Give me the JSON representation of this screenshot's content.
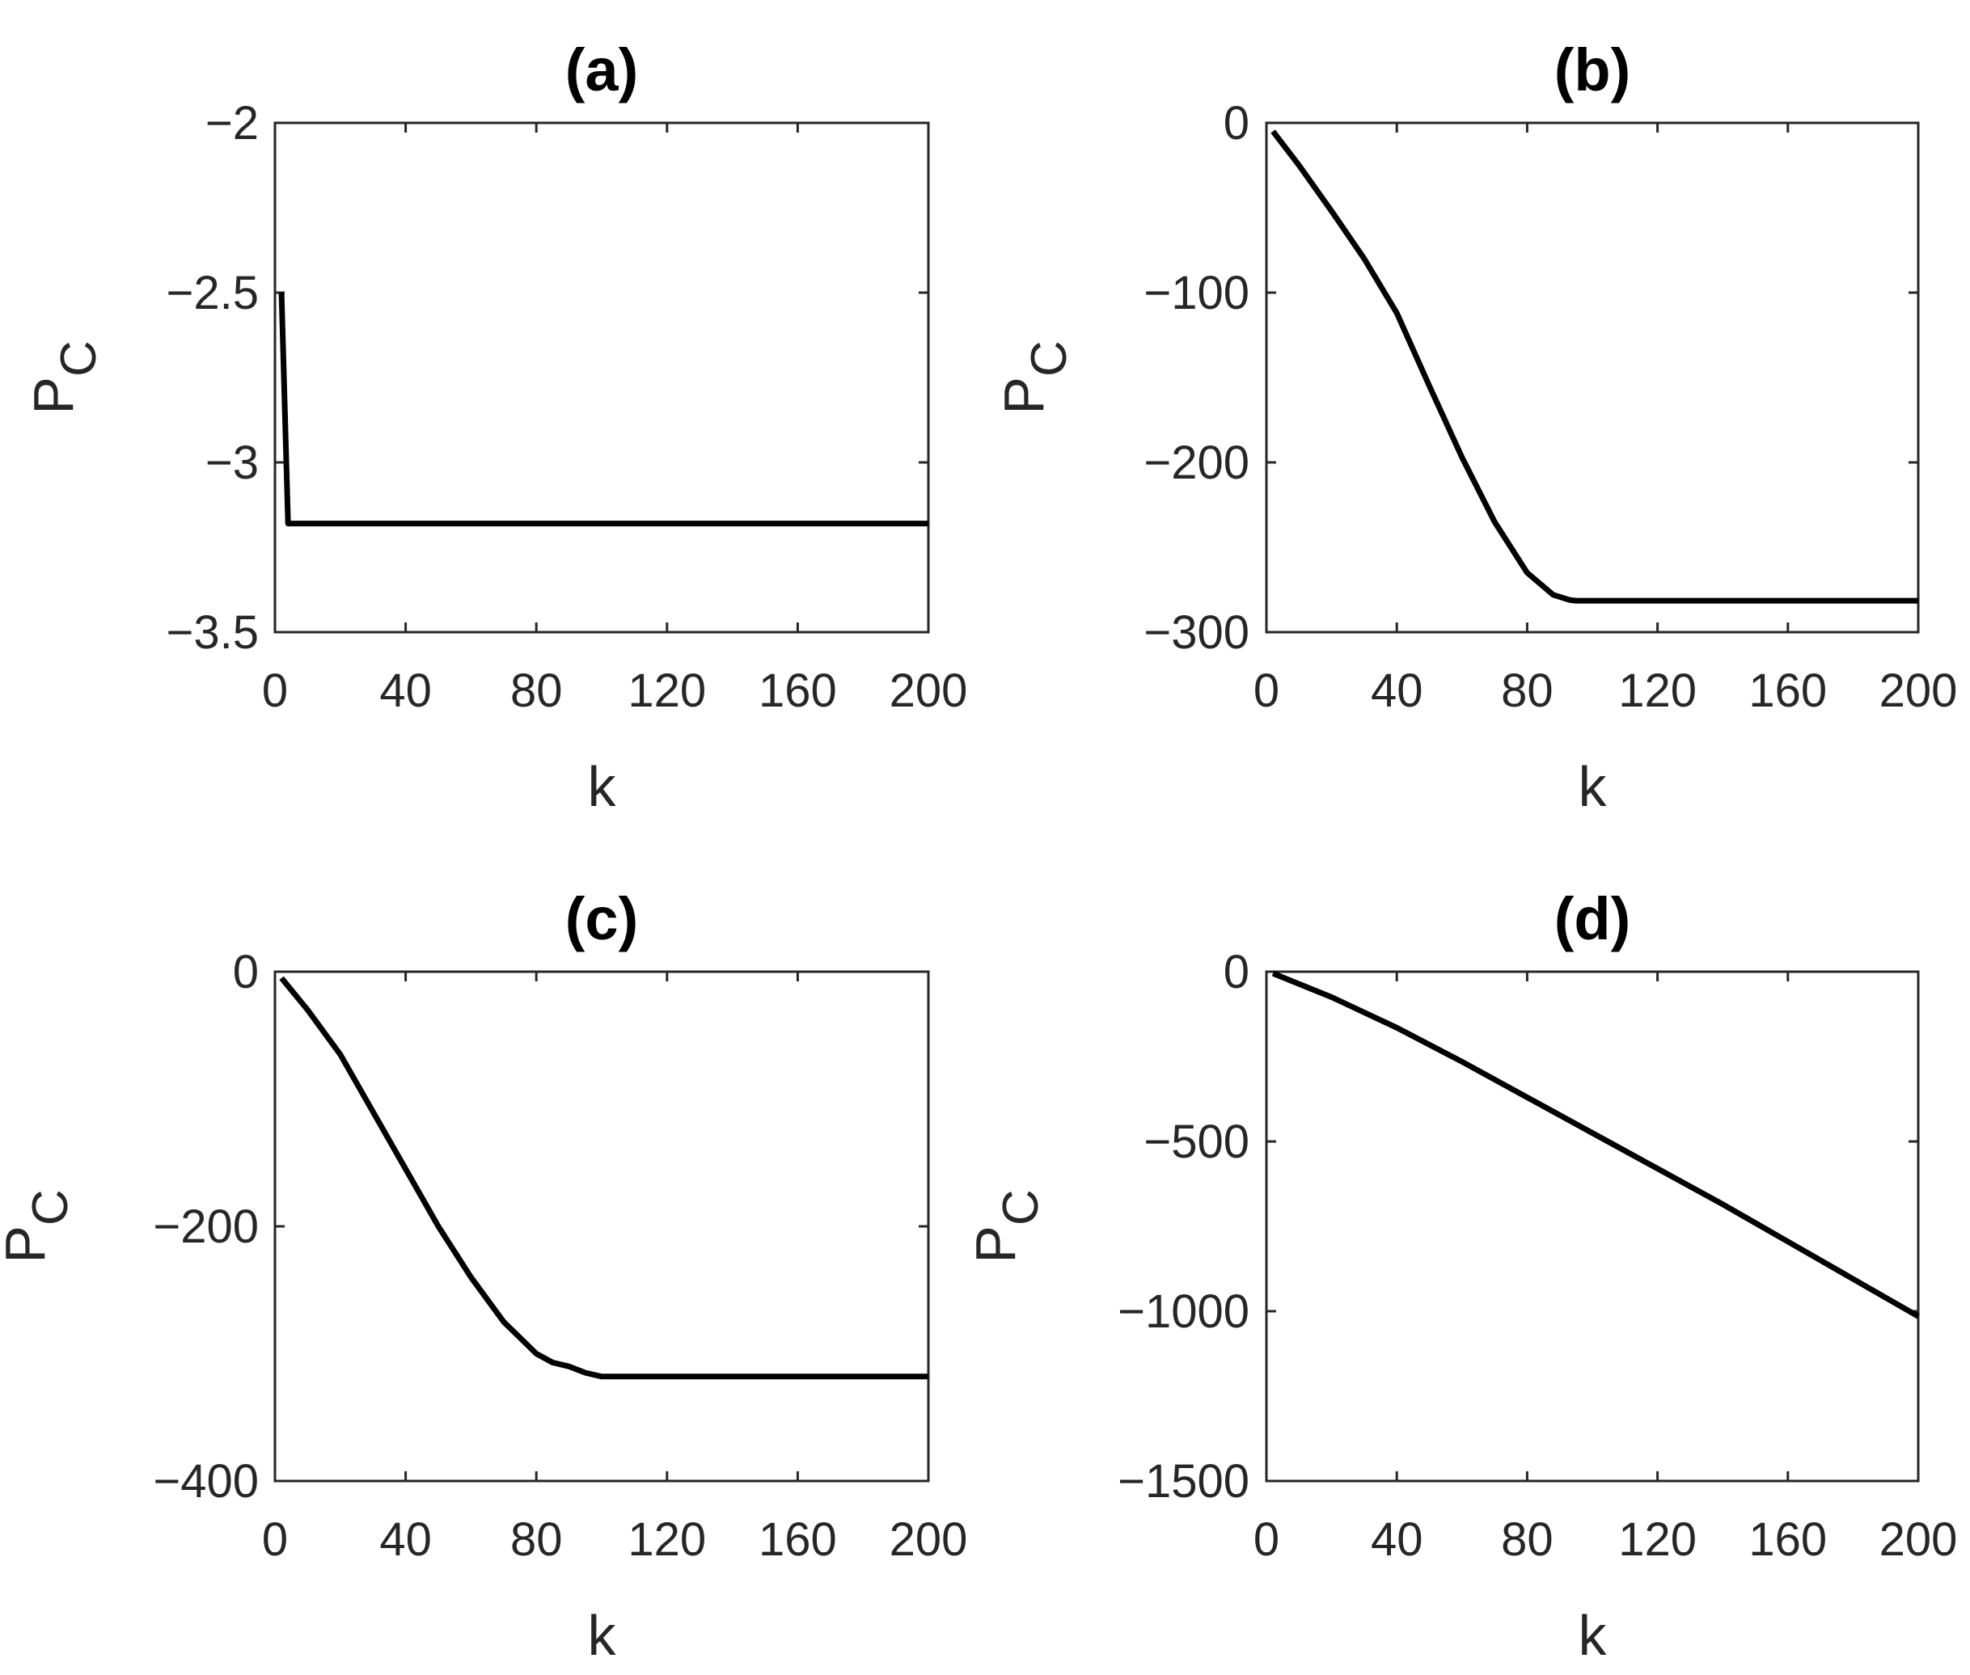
{
  "colors": {
    "line": "#000000",
    "axes": "#262626",
    "background": "#ffffff"
  },
  "chart_data": [
    {
      "type": "line",
      "title": "(a)",
      "xlabel": "k",
      "ylabel": "P",
      "ylabel_sub": "C",
      "xlim": [
        0,
        200
      ],
      "ylim": [
        -3.5,
        -2
      ],
      "xticks": [
        0,
        40,
        80,
        120,
        160,
        200
      ],
      "yticks": [
        -3.5,
        -3,
        -2.5,
        -2
      ],
      "ytick_labels": [
        "−3.5",
        "−3",
        "−2.5",
        "−2"
      ],
      "xtick_labels": [
        "0",
        "40",
        "80",
        "120",
        "160",
        "200"
      ],
      "grid": false,
      "series": [
        {
          "x": [
            2,
            4,
            200
          ],
          "y": [
            -2.5,
            -3.18,
            -3.18
          ]
        }
      ]
    },
    {
      "type": "line",
      "title": "(b)",
      "xlabel": "k",
      "ylabel": "P",
      "ylabel_sub": "C",
      "xlim": [
        0,
        200
      ],
      "ylim": [
        -300,
        0
      ],
      "xticks": [
        0,
        40,
        80,
        120,
        160,
        200
      ],
      "yticks": [
        -300,
        -200,
        -100,
        0
      ],
      "ytick_labels": [
        "−300",
        "−200",
        "−100",
        "0"
      ],
      "xtick_labels": [
        "0",
        "40",
        "80",
        "120",
        "160",
        "200"
      ],
      "grid": false,
      "series": [
        {
          "x": [
            2,
            10,
            20,
            30,
            40,
            50,
            60,
            70,
            80,
            88,
            93,
            95,
            100,
            150,
            200
          ],
          "y": [
            -5,
            -25,
            -52,
            -80,
            -112,
            -155,
            -197,
            -235,
            -265,
            -278,
            -281,
            -281.5,
            -281.5,
            -281.5,
            -281.5
          ]
        }
      ]
    },
    {
      "type": "line",
      "title": "(c)",
      "xlabel": "k",
      "ylabel": "P",
      "ylabel_sub": "C",
      "xlim": [
        0,
        200
      ],
      "ylim": [
        -400,
        0
      ],
      "xticks": [
        0,
        40,
        80,
        120,
        160,
        200
      ],
      "yticks": [
        -400,
        -200,
        0
      ],
      "ytick_labels": [
        "−400",
        "−200",
        "0"
      ],
      "xtick_labels": [
        "0",
        "40",
        "80",
        "120",
        "160",
        "200"
      ],
      "grid": false,
      "series": [
        {
          "x": [
            2,
            10,
            20,
            30,
            40,
            50,
            60,
            70,
            80,
            85,
            90,
            95,
            100,
            150,
            200
          ],
          "y": [
            -5,
            -30,
            -65,
            -110,
            -155,
            -200,
            -240,
            -275,
            -300,
            -307,
            -310,
            -315,
            -318,
            -318,
            -318
          ]
        }
      ]
    },
    {
      "type": "line",
      "title": "(d)",
      "xlabel": "k",
      "ylabel": "P",
      "ylabel_sub": "C",
      "xlim": [
        0,
        200
      ],
      "ylim": [
        -1500,
        0
      ],
      "xticks": [
        0,
        40,
        80,
        120,
        160,
        200
      ],
      "yticks": [
        -1500,
        -1000,
        -500,
        0
      ],
      "ytick_labels": [
        "−1500",
        "−1000",
        "−500",
        "0"
      ],
      "xtick_labels": [
        "0",
        "40",
        "80",
        "120",
        "160",
        "200"
      ],
      "grid": false,
      "series": [
        {
          "x": [
            2,
            20,
            40,
            60,
            80,
            100,
            120,
            140,
            160,
            180,
            200
          ],
          "y": [
            -5,
            -75,
            -165,
            -265,
            -370,
            -475,
            -580,
            -685,
            -795,
            -905,
            -1015
          ]
        }
      ]
    }
  ]
}
